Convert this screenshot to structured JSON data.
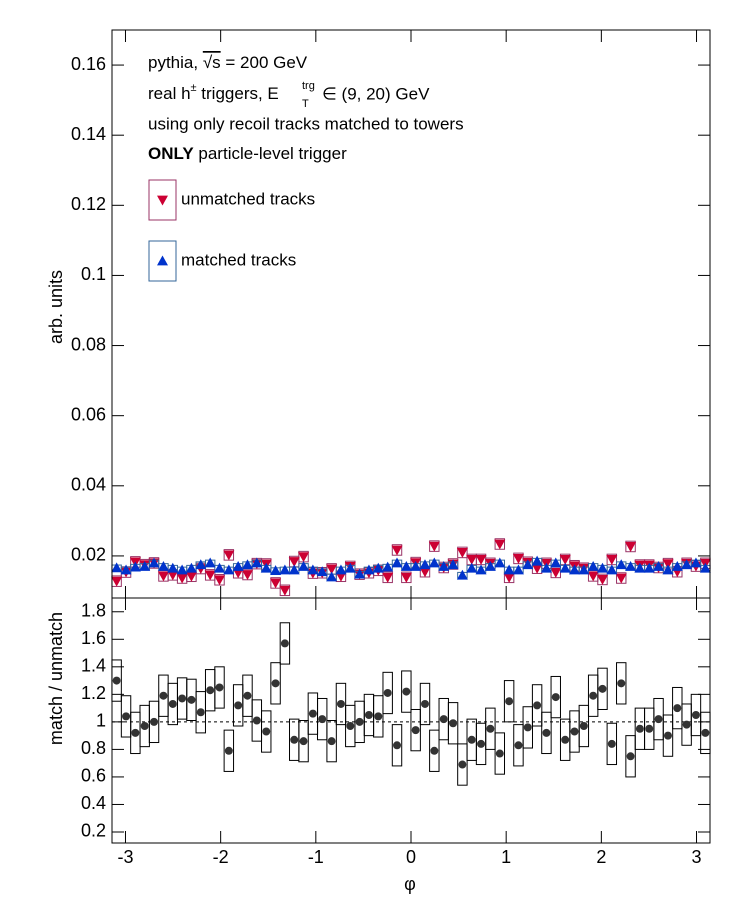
{
  "chart_data": [
    {
      "type": "scatter",
      "ylabel": "arb. units",
      "annotations": [
        [
          "pythia, ",
          "√s",
          " = 200 GeV"
        ],
        [
          "real h",
          "±",
          " triggers, E",
          "trg",
          "T",
          " ∈ (9, 20) GeV"
        ],
        [
          "using only recoil tracks matched to towers"
        ],
        [
          "ONLY",
          " particle-level trigger"
        ]
      ],
      "xlim": [
        -3.1416,
        3.1416
      ],
      "xticks": [
        -3,
        -2,
        -1,
        0,
        1,
        2,
        3
      ],
      "ylim": [
        0.008,
        0.17
      ],
      "yticks": [
        0.02,
        0.04,
        0.06,
        0.08,
        0.1,
        0.12,
        0.14,
        0.16
      ],
      "x": [
        -3.093,
        -2.994,
        -2.896,
        -2.798,
        -2.7,
        -2.601,
        -2.503,
        -2.405,
        -2.307,
        -2.209,
        -2.11,
        -2.012,
        -1.914,
        -1.816,
        -1.718,
        -1.62,
        -1.521,
        -1.423,
        -1.325,
        -1.227,
        -1.129,
        -1.031,
        -0.933,
        -0.834,
        -0.736,
        -0.638,
        -0.54,
        -0.442,
        -0.344,
        -0.245,
        -0.147,
        -0.049,
        0.049,
        0.147,
        0.245,
        0.344,
        0.442,
        0.54,
        0.638,
        0.736,
        0.834,
        0.933,
        1.031,
        1.129,
        1.227,
        1.325,
        1.423,
        1.521,
        1.62,
        1.718,
        1.816,
        1.914,
        2.012,
        2.11,
        2.209,
        2.307,
        2.405,
        2.503,
        2.601,
        2.7,
        2.798,
        2.896,
        2.994,
        3.093
      ],
      "series": [
        {
          "name": "unmatched tracks",
          "color": "#cc0033",
          "box_color": "#993366",
          "marker": "down",
          "error": 0.0015,
          "values": [
            0.0128,
            0.0154,
            0.0183,
            0.0175,
            0.018,
            0.0143,
            0.0146,
            0.0137,
            0.0142,
            0.0164,
            0.0146,
            0.0132,
            0.0203,
            0.0152,
            0.0147,
            0.0178,
            0.0177,
            0.0123,
            0.0102,
            0.0184,
            0.0198,
            0.0151,
            0.0152,
            0.0163,
            0.0142,
            0.017,
            0.0148,
            0.0152,
            0.0159,
            0.0139,
            0.0217,
            0.0139,
            0.0181,
            0.0155,
            0.0228,
            0.0167,
            0.0177,
            0.021,
            0.019,
            0.019,
            0.0179,
            0.0234,
            0.0139,
            0.0193,
            0.0182,
            0.0165,
            0.0179,
            0.0153,
            0.019,
            0.0172,
            0.0165,
            0.0143,
            0.0133,
            0.019,
            0.0137,
            0.0227,
            0.0174,
            0.0174,
            0.0167,
            0.0178,
            0.0155,
            0.0179,
            0.0171,
            0.0179
          ]
        },
        {
          "name": "matched tracks",
          "color": "#0033cc",
          "box_color": "#336699",
          "marker": "up",
          "error": 0.0008,
          "values": [
            0.0166,
            0.016,
            0.0168,
            0.017,
            0.018,
            0.017,
            0.0165,
            0.016,
            0.0165,
            0.0175,
            0.018,
            0.0165,
            0.016,
            0.017,
            0.0175,
            0.018,
            0.0165,
            0.0158,
            0.016,
            0.016,
            0.017,
            0.016,
            0.0155,
            0.014,
            0.016,
            0.0165,
            0.0148,
            0.016,
            0.0165,
            0.0168,
            0.018,
            0.017,
            0.017,
            0.0175,
            0.018,
            0.017,
            0.0175,
            0.0145,
            0.0165,
            0.016,
            0.017,
            0.018,
            0.016,
            0.016,
            0.0175,
            0.0185,
            0.0165,
            0.018,
            0.0165,
            0.016,
            0.016,
            0.017,
            0.0165,
            0.016,
            0.0175,
            0.017,
            0.0165,
            0.0165,
            0.017,
            0.016,
            0.017,
            0.0175,
            0.018,
            0.0165
          ]
        }
      ]
    },
    {
      "type": "scatter",
      "xlabel": "φ",
      "ylabel": "match / unmatch",
      "xlim": [
        -3.1416,
        3.1416
      ],
      "xticks": [
        -3,
        -2,
        -1,
        0,
        1,
        2,
        3
      ],
      "ylim": [
        0.12,
        1.9
      ],
      "yticks": [
        0.2,
        0.4,
        0.6,
        0.8,
        1,
        1.2,
        1.4,
        1.6,
        1.8
      ],
      "ref_line": 1,
      "x": [
        -3.093,
        -2.994,
        -2.896,
        -2.798,
        -2.7,
        -2.601,
        -2.503,
        -2.405,
        -2.307,
        -2.209,
        -2.11,
        -2.012,
        -1.914,
        -1.816,
        -1.718,
        -1.62,
        -1.521,
        -1.423,
        -1.325,
        -1.227,
        -1.129,
        -1.031,
        -0.933,
        -0.834,
        -0.736,
        -0.638,
        -0.54,
        -0.442,
        -0.344,
        -0.245,
        -0.147,
        -0.049,
        0.049,
        0.147,
        0.245,
        0.344,
        0.442,
        0.54,
        0.638,
        0.736,
        0.834,
        0.933,
        1.031,
        1.129,
        1.227,
        1.325,
        1.423,
        1.521,
        1.62,
        1.718,
        1.816,
        1.914,
        2.012,
        2.11,
        2.209,
        2.307,
        2.405,
        2.503,
        2.601,
        2.7,
        2.798,
        2.896,
        2.994,
        3.093
      ],
      "series": [
        {
          "color": "#333333",
          "box_color": "#000000",
          "marker": "circle",
          "error": 0.15,
          "values": [
            1.3,
            1.04,
            0.92,
            0.97,
            1.0,
            1.19,
            1.13,
            1.17,
            1.16,
            1.07,
            1.23,
            1.25,
            0.79,
            1.12,
            1.19,
            1.01,
            0.93,
            1.28,
            1.57,
            0.87,
            0.86,
            1.06,
            1.02,
            0.86,
            1.13,
            0.97,
            1.0,
            1.05,
            1.04,
            1.21,
            0.83,
            1.22,
            0.94,
            1.13,
            0.79,
            1.02,
            0.99,
            0.69,
            0.87,
            0.84,
            0.95,
            0.77,
            1.15,
            0.83,
            0.96,
            1.12,
            0.92,
            1.18,
            0.87,
            0.93,
            0.97,
            1.19,
            1.24,
            0.84,
            1.28,
            0.75,
            0.95,
            0.95,
            1.02,
            0.9,
            1.1,
            0.98,
            1.05,
            0.92
          ]
        }
      ]
    }
  ]
}
